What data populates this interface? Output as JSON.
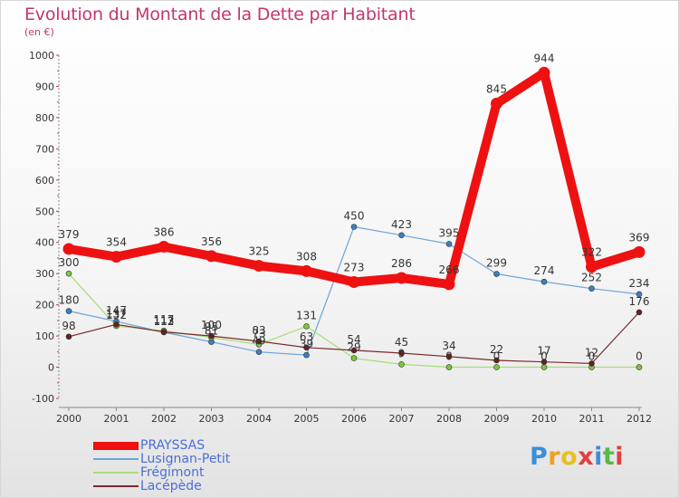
{
  "title": "Evolution du Montant de la Dette par Habitant",
  "subtitle": "(en €)",
  "logo": {
    "text": "Proxiti",
    "letter_colors": [
      "#3a8fd8",
      "#f0a020",
      "#e8c020",
      "#e04040",
      "#3a8fd8",
      "#58b848",
      "#e04040"
    ]
  },
  "chart_data": {
    "type": "line",
    "title": "Evolution du Montant de la Dette par Habitant",
    "subtitle": "(en €)",
    "x": [
      "2000",
      "2001",
      "2002",
      "2003",
      "2004",
      "2005",
      "2006",
      "2007",
      "2008",
      "2009",
      "2010",
      "2011",
      "2012"
    ],
    "ylim": [
      -100,
      1000
    ],
    "yticks": [
      "-100",
      "0",
      "100",
      "200",
      "300",
      "400",
      "500",
      "600",
      "700",
      "800",
      "900",
      "1000"
    ],
    "grid": false,
    "legend_position": "bottom-left",
    "series": [
      {
        "name": "PRAYSSAS",
        "color": "#ee1111",
        "emphasis": true,
        "values": [
          379,
          354,
          386,
          356,
          325,
          308,
          273,
          286,
          266,
          845,
          944,
          322,
          369
        ],
        "labels": [
          "379",
          "354",
          "386",
          "356",
          "325",
          "308",
          "273",
          "286",
          "266",
          "845",
          "944",
          "322",
          "369"
        ]
      },
      {
        "name": "Lusignan-Petit",
        "color": "#6ea4d8",
        "marker": "#3a7fc8",
        "values": [
          180,
          147,
          112,
          81,
          49,
          39,
          450,
          423,
          395,
          299,
          274,
          252,
          234
        ],
        "labels": [
          "180",
          "147",
          "112",
          "81",
          "49",
          "39",
          "450",
          "423",
          "395",
          "299",
          "274",
          "252",
          "234"
        ]
      },
      {
        "name": "Frégimont",
        "color": "#a8dc78",
        "marker": "#7cc83c",
        "values": [
          300,
          132,
          117,
          95,
          73,
          131,
          29,
          9,
          0,
          0,
          0,
          0,
          0
        ],
        "labels": [
          "300",
          "132",
          "117",
          "95",
          "73",
          "131",
          "29",
          "9",
          "0",
          "0",
          "0",
          "0",
          "0"
        ]
      },
      {
        "name": "Lacépède",
        "color": "#7a2a2a",
        "marker": "#6a1f1f",
        "values": [
          98,
          137,
          113,
          100,
          83,
          63,
          54,
          45,
          34,
          22,
          17,
          12,
          176
        ],
        "labels": [
          "98",
          "137",
          "113",
          "100",
          "83",
          "63",
          "54",
          "45",
          "34",
          "22",
          "17",
          "12",
          "176"
        ]
      }
    ]
  }
}
